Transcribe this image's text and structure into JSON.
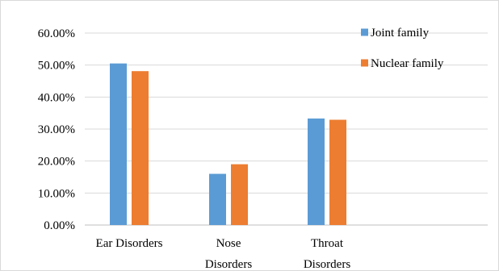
{
  "chart_data": {
    "type": "bar",
    "categories": [
      [
        "Ear Disorders"
      ],
      [
        "Nose",
        "Disorders"
      ],
      [
        "Throat",
        "Disorders"
      ]
    ],
    "series": [
      {
        "name": "Joint family",
        "color": "#5b9bd5",
        "values": [
          0.505,
          0.16,
          0.333
        ]
      },
      {
        "name": "Nuclear family",
        "color": "#ed7d31",
        "values": [
          0.481,
          0.19,
          0.329
        ]
      }
    ],
    "ylim": [
      0,
      0.6
    ],
    "yticks": [
      "0.00%",
      "10.00%",
      "20.00%",
      "30.00%",
      "40.00%",
      "50.00%",
      "60.00%"
    ],
    "grid": true,
    "legend_position": "top-right",
    "title": "",
    "xlabel": "",
    "ylabel": ""
  }
}
